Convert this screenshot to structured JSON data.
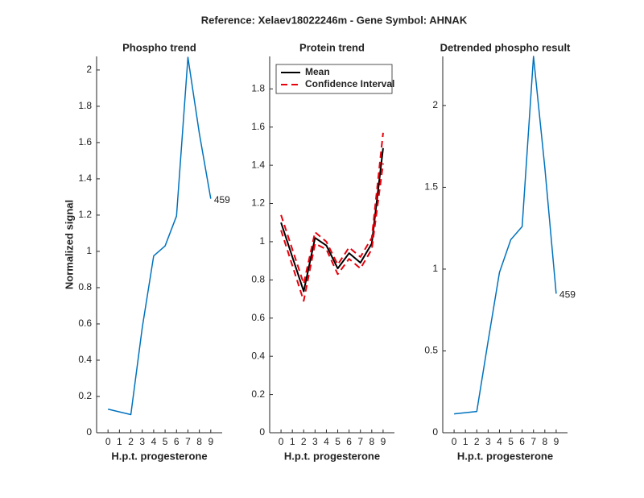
{
  "title": "Reference:  Xelaev18022246m - Gene Symbol:  AHNAK",
  "chart_data": [
    {
      "type": "line",
      "title": "Phospho trend",
      "xlabel": "H.p.t. progesterone",
      "ylabel": "Normalized signal",
      "x": [
        0,
        2,
        3,
        4,
        5,
        6,
        7,
        8,
        9
      ],
      "series": [
        {
          "color": "#0072bd",
          "values": [
            0.13,
            0.1,
            0.58,
            0.975,
            1.03,
            1.195,
            2.07,
            1.65,
            1.29
          ]
        }
      ],
      "annotation": "459",
      "xlim": [
        -1,
        10
      ],
      "xticks": [
        0,
        1,
        2,
        3,
        4,
        5,
        6,
        7,
        8,
        9
      ],
      "ylim": [
        0,
        2.075
      ],
      "yticks": [
        0,
        0.2,
        0.4,
        0.6,
        0.8,
        1,
        1.2,
        1.4,
        1.6,
        1.8,
        2
      ]
    },
    {
      "type": "band",
      "title": "Protein trend",
      "xlabel": "H.p.t. progesterone",
      "x": [
        0,
        2,
        3,
        4,
        5,
        6,
        7,
        8,
        9
      ],
      "series": [
        {
          "name": "Mean",
          "color": "#000000",
          "values": [
            1.1,
            0.74,
            1.02,
            0.98,
            0.86,
            0.94,
            0.89,
            0.99,
            1.49
          ]
        },
        {
          "name": "Confidence Interval",
          "color": "#e8000b",
          "dashed": true,
          "upper": [
            1.14,
            0.78,
            1.05,
            1.0,
            0.88,
            0.97,
            0.92,
            1.02,
            1.57
          ],
          "lower": [
            1.06,
            0.69,
            0.99,
            0.96,
            0.83,
            0.91,
            0.86,
            0.96,
            1.41
          ]
        }
      ],
      "legend": "upper left",
      "xlim": [
        -1,
        10
      ],
      "xticks": [
        0,
        1,
        2,
        3,
        4,
        5,
        6,
        7,
        8,
        9
      ],
      "ylim": [
        0,
        1.97
      ],
      "yticks": [
        0,
        0.2,
        0.4,
        0.6,
        0.8,
        1,
        1.2,
        1.4,
        1.6,
        1.8
      ]
    },
    {
      "type": "line",
      "title": "Detrended phospho result",
      "xlabel": "H.p.t. progesterone",
      "x": [
        0,
        2,
        3,
        4,
        5,
        6,
        7,
        8,
        9
      ],
      "series": [
        {
          "color": "#0072bd",
          "values": [
            0.115,
            0.13,
            0.56,
            0.98,
            1.18,
            1.26,
            2.3,
            1.62,
            0.85
          ]
        }
      ],
      "annotation": "459",
      "xlim": [
        -1,
        10
      ],
      "xticks": [
        0,
        1,
        2,
        3,
        4,
        5,
        6,
        7,
        8,
        9
      ],
      "ylim": [
        0,
        2.3
      ],
      "yticks": [
        0,
        0.5,
        1,
        1.5,
        2
      ]
    }
  ]
}
